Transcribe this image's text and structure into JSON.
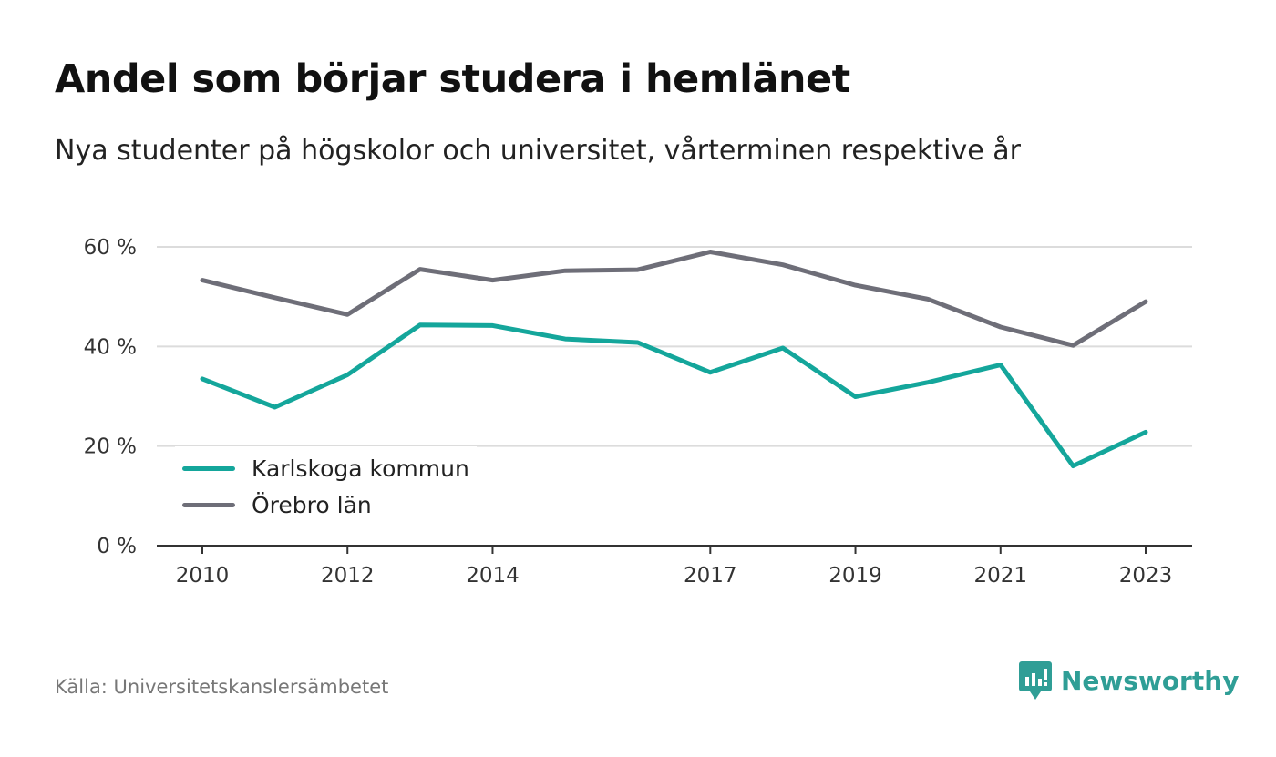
{
  "title": "Andel som börjar studera i hemlänet",
  "subtitle": "Nya studenter på högskolor och universitet, vårterminen respektive år",
  "source": "Källa: Universitetskanslersämbetet",
  "brand": {
    "name": "Newsworthy",
    "color": "#2f9e96",
    "icon": "newsworthy-logo-icon"
  },
  "chart_data": {
    "type": "line",
    "x": [
      2010,
      2011,
      2012,
      2013,
      2014,
      2015,
      2016,
      2017,
      2018,
      2019,
      2020,
      2021,
      2022,
      2023
    ],
    "x_tick_labels": [
      "2010",
      "2012",
      "2014",
      "2017",
      "2019",
      "2021",
      "2023"
    ],
    "y_tick_labels": [
      "0 %",
      "20 %",
      "40 %",
      "60 %"
    ],
    "ylim": [
      0,
      60
    ],
    "grid": true,
    "legend_position": "bottom-left",
    "series": [
      {
        "name": "Karlskoga kommun",
        "color": "#14a69b",
        "values": [
          33.5,
          27.8,
          34.3,
          44.3,
          44.2,
          41.5,
          40.8,
          34.8,
          39.7,
          29.9,
          32.8,
          36.3,
          16.0,
          22.8
        ]
      },
      {
        "name": "Örebro län",
        "color": "#6e6e78",
        "values": [
          53.3,
          49.8,
          46.4,
          55.5,
          53.3,
          55.2,
          55.4,
          59.0,
          56.4,
          52.3,
          49.5,
          43.9,
          40.2,
          49.0
        ]
      }
    ]
  }
}
